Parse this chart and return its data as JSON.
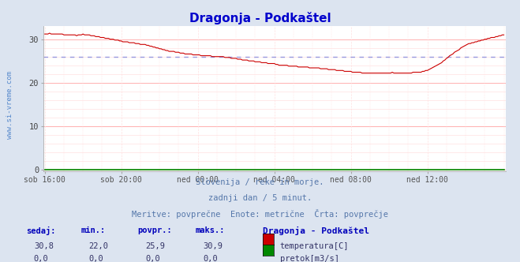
{
  "title": "Dragonja - Podkaštel",
  "title_color": "#0000cc",
  "bg_color": "#dce4f0",
  "plot_bg_color": "#ffffff",
  "grid_color_major": "#ffb0b0",
  "grid_color_minor": "#ffe0e0",
  "watermark": "www.si-vreme.com",
  "xlabels": [
    "sob 16:00",
    "sob 20:00",
    "ned 00:00",
    "ned 04:00",
    "ned 08:00",
    "ned 12:00"
  ],
  "ylim": [
    -0.5,
    33
  ],
  "yticks": [
    0,
    10,
    20,
    30
  ],
  "avg_line_y": 25.9,
  "avg_line_color": "#9999dd",
  "temp_line_color": "#cc0000",
  "flow_line_color": "#008800",
  "footer_line1": "Slovenija / reke in morje.",
  "footer_line2": "zadnji dan / 5 minut.",
  "footer_line3": "Meritve: povprečne  Enote: metrične  Črta: povprečje",
  "footer_color": "#5577aa",
  "table_headers": [
    "sedaj:",
    "min.:",
    "povpr.:",
    "maks.:"
  ],
  "table_row1_vals": [
    "30,8",
    "22,0",
    "25,9",
    "30,9"
  ],
  "table_row2_vals": [
    "0,0",
    "0,0",
    "0,0",
    "0,0"
  ],
  "table_station": "Dragonja - Podkaštel",
  "table_label1": "temperatura[C]",
  "table_label2": "pretok[m3/s]",
  "table_header_color": "#0000bb",
  "table_val_color": "#333366",
  "legend_red": "#cc0000",
  "legend_green": "#008800",
  "num_points": 289
}
